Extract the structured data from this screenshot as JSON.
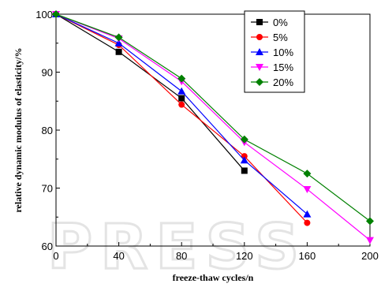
{
  "chart_data": {
    "type": "line",
    "xlabel": "freeze-thaw cycles/n",
    "ylabel": "relative dynamic modulus of elasticity/%",
    "xlim": [
      0,
      200
    ],
    "ylim": [
      60,
      100
    ],
    "xticks": [
      0,
      40,
      80,
      120,
      160,
      200
    ],
    "yticks": [
      60,
      70,
      80,
      90,
      100
    ],
    "grid": false,
    "legend_position": "top-right",
    "series": [
      {
        "name": "0%",
        "color": "#000000",
        "marker": "square",
        "x": [
          0,
          40,
          80,
          120
        ],
        "y": [
          100,
          93.5,
          85.5,
          73
        ]
      },
      {
        "name": "5%",
        "color": "#ff0000",
        "marker": "circle",
        "x": [
          0,
          40,
          80,
          120,
          160
        ],
        "y": [
          100,
          94.7,
          84.4,
          75.5,
          64
        ]
      },
      {
        "name": "10%",
        "color": "#0000ff",
        "marker": "triangle-up",
        "x": [
          0,
          40,
          80,
          120,
          160
        ],
        "y": [
          100,
          95,
          86.7,
          74.8,
          65.5
        ]
      },
      {
        "name": "15%",
        "color": "#ff00ff",
        "marker": "triangle-down",
        "x": [
          0,
          40,
          80,
          120,
          160,
          200
        ],
        "y": [
          100,
          95.8,
          88.4,
          77.9,
          69.8,
          61
        ]
      },
      {
        "name": "20%",
        "color": "#008000",
        "marker": "diamond",
        "x": [
          0,
          40,
          80,
          120,
          160,
          200
        ],
        "y": [
          100,
          96,
          88.9,
          78.4,
          72.5,
          64.3
        ]
      }
    ]
  },
  "watermark": {
    "text": "PRESS",
    "color": "#e4e4e4"
  }
}
